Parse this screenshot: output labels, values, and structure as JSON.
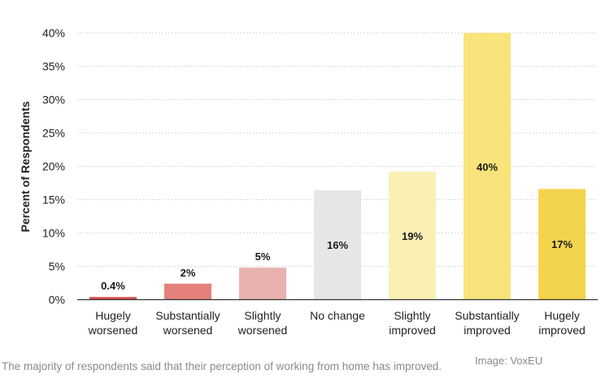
{
  "chart_data": {
    "type": "bar",
    "categories": [
      [
        "Hugely",
        "worsened"
      ],
      [
        "Substantially",
        "worsened"
      ],
      [
        "Slightly",
        "worsened"
      ],
      [
        "No change"
      ],
      [
        "Slightly",
        "improved"
      ],
      [
        "Substantially",
        "improved"
      ],
      [
        "Hugely",
        "improved"
      ]
    ],
    "values": [
      0.4,
      2.4,
      4.8,
      16.4,
      19.2,
      40.0,
      16.6
    ],
    "data_labels": [
      "0.4%",
      "2%",
      "5%",
      "16%",
      "19%",
      "40%",
      "17%"
    ],
    "colors": [
      "#d9534f",
      "#e3807c",
      "#eab2af",
      "#e6e6e6",
      "#faf0b4",
      "#f8e47a",
      "#f3d44d"
    ],
    "ylabel": "Percent of Respondents",
    "ylim": [
      0,
      40
    ],
    "yticks": [
      0,
      5,
      10,
      15,
      20,
      25,
      30,
      35,
      40
    ],
    "ytick_labels": [
      "0%",
      "5%",
      "10%",
      "15%",
      "20%",
      "25%",
      "30%",
      "35%",
      "40%"
    ],
    "grid": true
  },
  "caption": "The majority of respondents said that their perception of working from home has improved.",
  "credit": "Image: VoxEU"
}
